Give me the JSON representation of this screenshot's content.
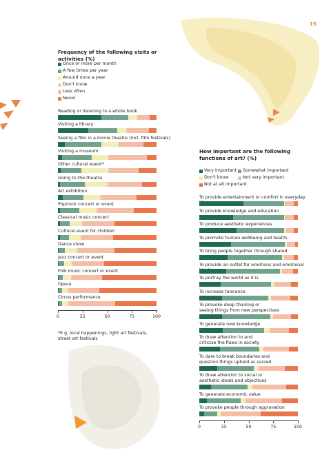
{
  "page_number": "15",
  "footnote": "*E.g. local happenings, light art festivals, street art festivals",
  "chart_data": [
    {
      "type": "bar",
      "orientation": "horizontal",
      "stacked": true,
      "title": "Frequency of the following visits or activities (%)",
      "categories": [
        "Reading or listening to a whole book",
        "Visiting a library",
        "Seeing a film in a movie theatre (incl. film festivals)",
        "Visiting a museum",
        "Other cultural event*",
        "Going to the theatre",
        "Art exhibition",
        "Pop/rock concert or event",
        "Classical music concert",
        "Cultural event for children",
        "Dance show",
        "Jazz concert or event",
        "Folk music concert or event",
        "Opera",
        "Circus performance"
      ],
      "series": [
        {
          "name": "Once or more per month",
          "color": "#1f6b4e",
          "values": [
            44,
            31,
            7,
            4,
            3,
            2,
            5,
            2,
            2,
            2,
            1,
            1,
            1,
            1,
            1
          ]
        },
        {
          "name": "A few times per year",
          "color": "#6fa48c",
          "values": [
            27,
            29,
            37,
            30,
            21,
            25,
            21,
            20,
            10,
            9,
            6,
            5,
            4,
            3,
            3
          ]
        },
        {
          "name": "Around once a year",
          "color": "#f4eeb4",
          "values": [
            9,
            9,
            17,
            16,
            26,
            22,
            17,
            17,
            12,
            12,
            12,
            8,
            8,
            6,
            6
          ]
        },
        {
          "name": "Don't know",
          "color": "#dcd8c2",
          "values": [
            1,
            1,
            1,
            1,
            2,
            1,
            1,
            1,
            1,
            1,
            1,
            1,
            1,
            1,
            1
          ]
        },
        {
          "name": "Less often",
          "color": "#f6bda6",
          "values": [
            12,
            22,
            25,
            39,
            30,
            35,
            36,
            37,
            32,
            32,
            37,
            32,
            31,
            31,
            47
          ]
        },
        {
          "name": "Never",
          "color": "#e9774b",
          "values": [
            7,
            8,
            13,
            10,
            18,
            15,
            20,
            23,
            43,
            44,
            43,
            53,
            55,
            58,
            42
          ]
        }
      ],
      "xlim": [
        0,
        100
      ],
      "xticks": [
        0,
        25,
        50,
        75,
        100
      ]
    },
    {
      "type": "bar",
      "orientation": "horizontal",
      "stacked": true,
      "title": "How important are the following functions of art? (%)",
      "categories": [
        "To provide entertainment or comfort in everyday life",
        "To provide knowledge and education",
        "To produce aesthetic experiences",
        "To promote human wellbeing and health",
        "To bring people together through shared experiences",
        "To provide an outlet for emotions and emotional blocks",
        "To portray the world as it is",
        "To increase tolerance",
        "To provoke deep thinking or\nseeing things from new perspectives",
        "To generate new knowledge",
        "To draw attention to and\ncriticise the flaws in society",
        "To dare to break boundaries and\nquestion things upheld as sacred",
        "To draw attention to social or\naesthetic ideals and objectives",
        "To generate economic value",
        "To provoke people through aggravation"
      ],
      "series": [
        {
          "name": "Very important",
          "color": "#1f6b4e",
          "values": [
            45,
            34,
            38,
            32,
            29,
            27,
            22,
            23,
            23,
            24,
            21,
            18,
            12,
            8,
            5
          ]
        },
        {
          "name": "Somewhat important",
          "color": "#6fa48c",
          "values": [
            41,
            52,
            48,
            55,
            55,
            55,
            51,
            47,
            49,
            42,
            40,
            37,
            37,
            34,
            13
          ]
        },
        {
          "name": "Don't know",
          "color": "#f4eeb4",
          "values": [
            1,
            1,
            2,
            2,
            2,
            2,
            3,
            3,
            3,
            5,
            4,
            5,
            5,
            5,
            4
          ]
        },
        {
          "name": "Not very important",
          "color": "#f6bda6",
          "values": [
            9,
            9,
            8,
            8,
            10,
            11,
            17,
            19,
            18,
            20,
            26,
            27,
            34,
            37,
            40
          ]
        },
        {
          "name": "Not at all important",
          "color": "#e9774b",
          "values": [
            4,
            4,
            4,
            3,
            4,
            5,
            7,
            8,
            7,
            9,
            9,
            13,
            12,
            16,
            38
          ]
        }
      ],
      "xlim": [
        0,
        100
      ],
      "xticks": [
        0,
        25,
        50,
        75,
        100
      ]
    }
  ]
}
